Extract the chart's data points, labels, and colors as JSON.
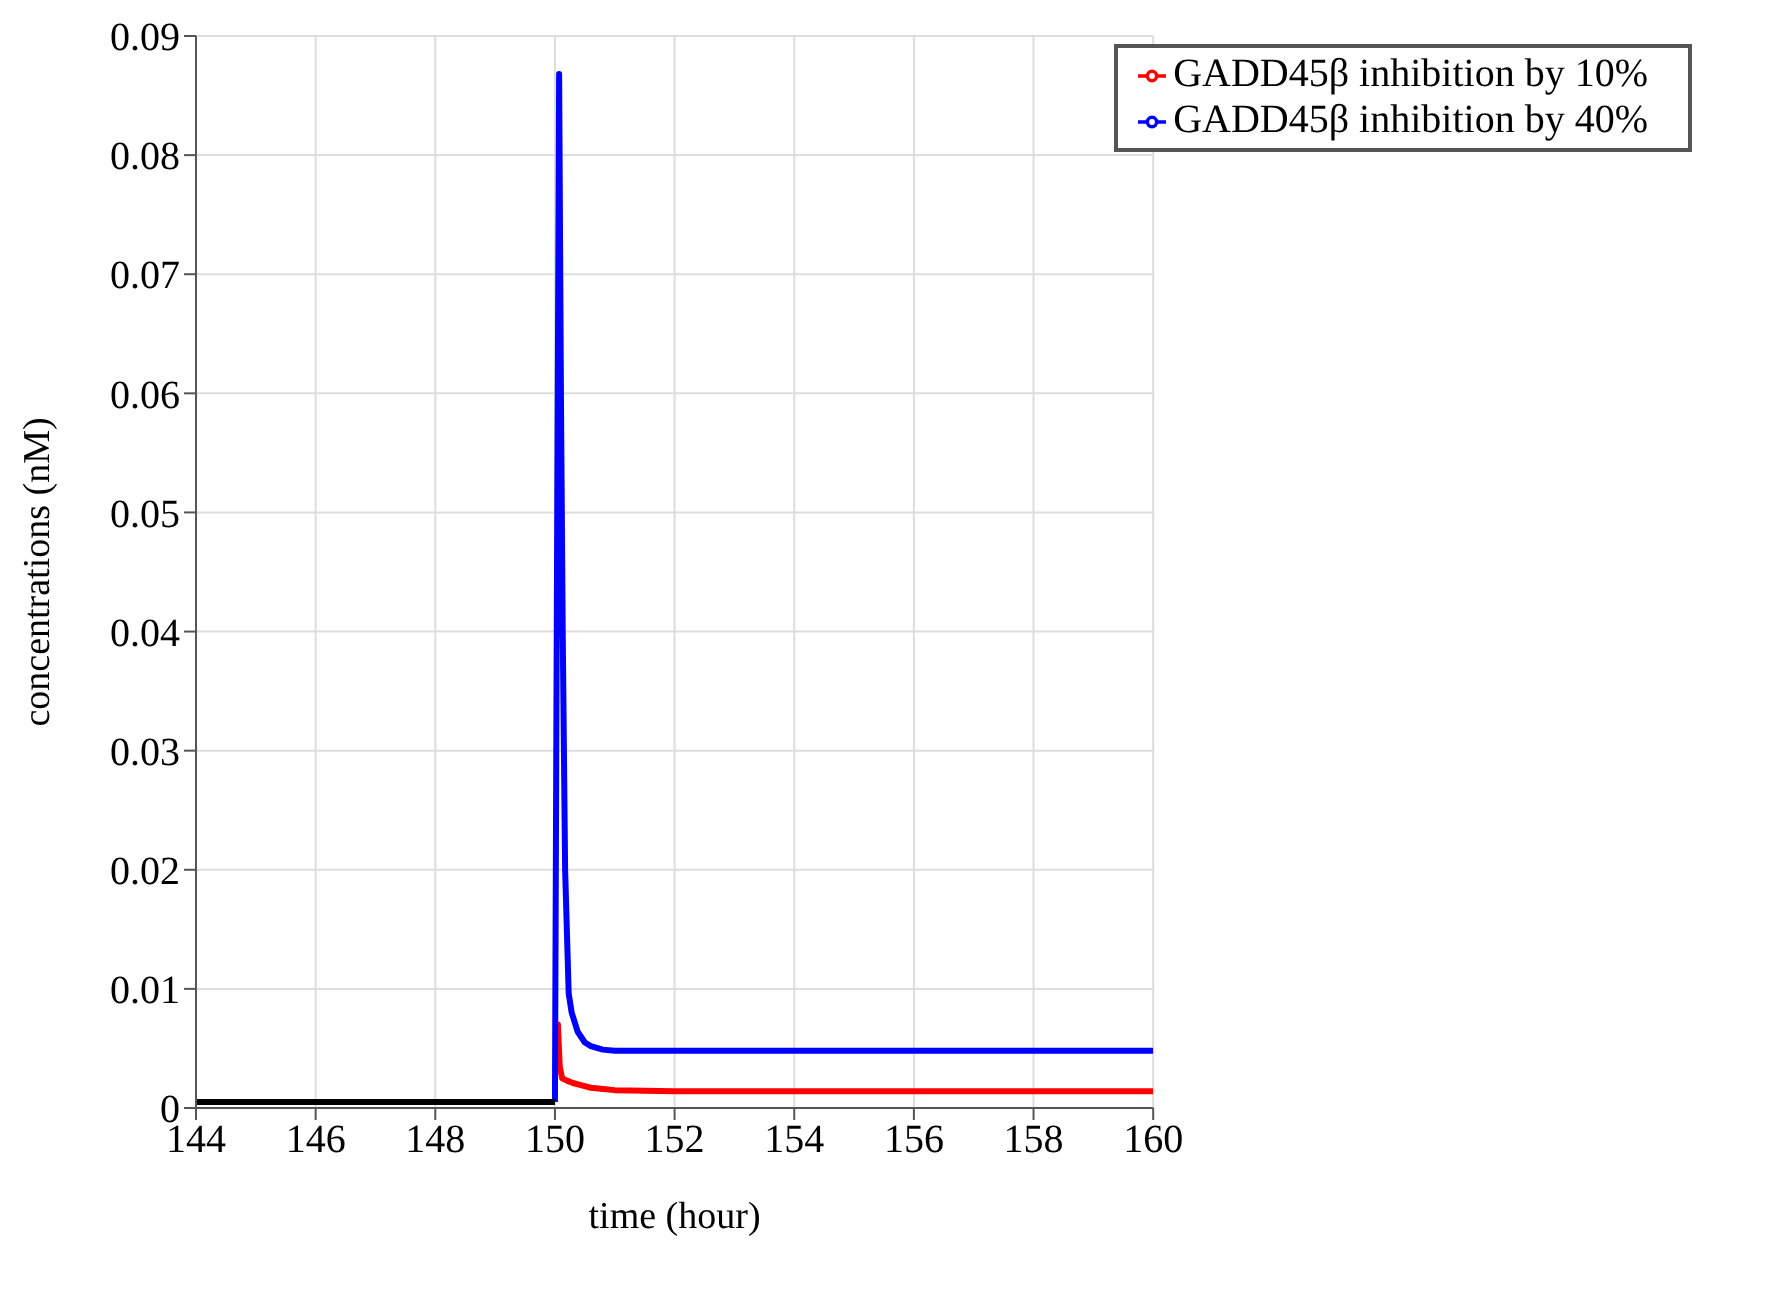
{
  "chart_data": {
    "type": "line",
    "xlabel": "time (hour)",
    "ylabel": "concentrations (nM)",
    "xlim": [
      144,
      160
    ],
    "xticks": [
      144,
      146,
      148,
      150,
      152,
      154,
      156,
      158,
      160
    ],
    "ylim": [
      0,
      0.09
    ],
    "yticks": [
      0,
      0.01,
      0.02,
      0.03,
      0.04,
      0.05,
      0.06,
      0.07,
      0.08,
      0.09
    ],
    "grid": true,
    "legend": "top right",
    "marker": "none",
    "line_style": "solid",
    "series": [
      {
        "name": "GADD45β inhibition by 10%",
        "color": "#ff0000",
        "x": [
          150.03,
          150.05,
          150.08,
          150.12,
          150.2,
          150.3,
          150.45,
          150.6,
          150.8,
          151,
          152,
          154,
          156,
          158,
          160
        ],
        "values": [
          0.004,
          0.007,
          0.0035,
          0.0025,
          0.0023,
          0.0021,
          0.0019,
          0.0017,
          0.0016,
          0.0015,
          0.0014,
          0.0014,
          0.0014,
          0.0014,
          0.0014
        ]
      },
      {
        "name": "GADD45β inhibition by 40%",
        "color": "#0000ff",
        "x": [
          150,
          150.03,
          150.07,
          150.1,
          150.13,
          150.17,
          150.23,
          150.28,
          150.38,
          150.5,
          150.6,
          150.8,
          151,
          152,
          154,
          156,
          158,
          160
        ],
        "values": [
          0.0005,
          0.04,
          0.0868,
          0.06,
          0.04,
          0.02,
          0.0096,
          0.008,
          0.0064,
          0.0055,
          0.0052,
          0.0049,
          0.0048,
          0.0048,
          0.0048,
          0.0048,
          0.0048,
          0.0048
        ]
      },
      {
        "color": "#000000",
        "x": [
          144,
          150
        ],
        "values": [
          0.0005,
          0.0005
        ]
      }
    ]
  }
}
